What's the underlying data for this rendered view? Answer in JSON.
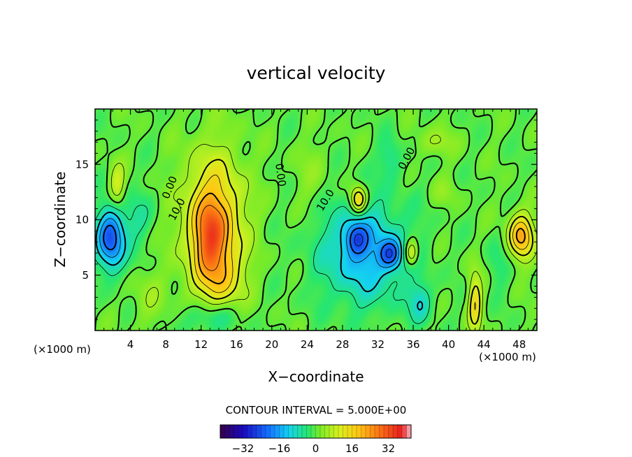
{
  "chart_data": {
    "type": "heatmap",
    "title": "vertical velocity",
    "xlabel": "X−coordinate",
    "ylabel": "Z−coordinate",
    "x_unit_left": "(×1000 m)",
    "x_unit_right": "(×1000 m)",
    "xlim": [
      0,
      50
    ],
    "ylim": [
      0,
      20
    ],
    "xticks": [
      4,
      8,
      12,
      16,
      20,
      24,
      28,
      32,
      36,
      40,
      44,
      48
    ],
    "yticks": [
      5,
      10,
      15
    ],
    "contour_interval_text": "CONTOUR INTERVAL = 5.000E+00",
    "contour_labels": [
      {
        "text": "10.0",
        "x": 9.6,
        "z": 10.8,
        "rot": -62
      },
      {
        "text": "0.00",
        "x": 8.8,
        "z": 12.8,
        "rot": -68
      },
      {
        "text": "0.00",
        "x": 20.6,
        "z": 14.0,
        "rot": 82
      },
      {
        "text": "10.0",
        "x": 26.4,
        "z": 11.6,
        "rot": -58
      },
      {
        "text": "0.00",
        "x": 35.6,
        "z": 15.4,
        "rot": -62
      }
    ],
    "colorbar": {
      "range": [
        -42,
        42
      ],
      "ticks": [
        -32,
        -16,
        0,
        16,
        32
      ],
      "tick_labels": [
        "−32",
        "−16",
        "0",
        "16",
        "32"
      ]
    },
    "features": [
      {
        "kind": "updraft",
        "x": 13.3,
        "z": 8.0,
        "peak": 30
      },
      {
        "kind": "downdraft",
        "x": 1.7,
        "z": 8.3,
        "peak": -24
      },
      {
        "kind": "downdraft",
        "x": 29.6,
        "z": 8.3,
        "peak": -26
      },
      {
        "kind": "downdraft",
        "x": 33.4,
        "z": 6.9,
        "peak": -28
      },
      {
        "kind": "updraft",
        "x": 48.2,
        "z": 8.5,
        "peak": 22
      },
      {
        "kind": "updraft",
        "x": 29.8,
        "z": 11.8,
        "peak": 16
      },
      {
        "kind": "updraft",
        "x": 35.8,
        "z": 7.0,
        "peak": 14
      },
      {
        "kind": "updraft",
        "x": 43.0,
        "z": 2.5,
        "peak": 14
      },
      {
        "kind": "updraft",
        "x": 2.5,
        "z": 13.0,
        "peak": 10
      }
    ]
  }
}
